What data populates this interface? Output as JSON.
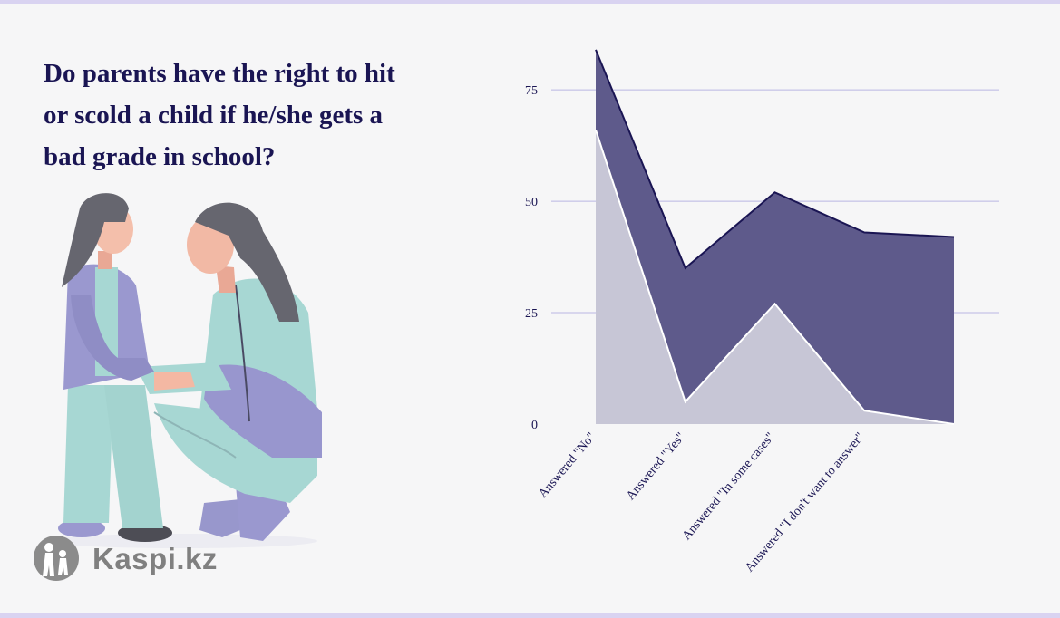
{
  "title": "Do parents have the right to hit or scold a child if he/she gets a bad grade in school?",
  "brand": {
    "name": "Kaspi.kz",
    "logo_icon": "family-logo-icon"
  },
  "illustration": {
    "icon": "mother-and-daughter-illustration"
  },
  "colors": {
    "background": "#f6f6f7",
    "title": "#1a1553",
    "series_top_fill": "#5e5a8b",
    "series_top_line": "#1a1553",
    "series_bottom_fill": "#c7c6d6",
    "series_bottom_line": "#ffffff",
    "grid": "#b9b6e3",
    "frame": "#d9d3f1"
  },
  "chart_data": {
    "type": "area",
    "stacked": true,
    "categories": [
      "Answered \"No\"",
      "Answered \"Yes\"",
      "Answered \"In some cases\"",
      "Answered \"I don't want to answer\"",
      ""
    ],
    "series": [
      {
        "values": [
          66,
          5,
          27,
          3,
          0
        ]
      },
      {
        "values": [
          18,
          30,
          25,
          40,
          42
        ]
      }
    ],
    "y_ticks": [
      0,
      25,
      50,
      75
    ],
    "ylim": [
      0,
      85
    ],
    "grid": true,
    "xlabel": "",
    "ylabel": ""
  }
}
